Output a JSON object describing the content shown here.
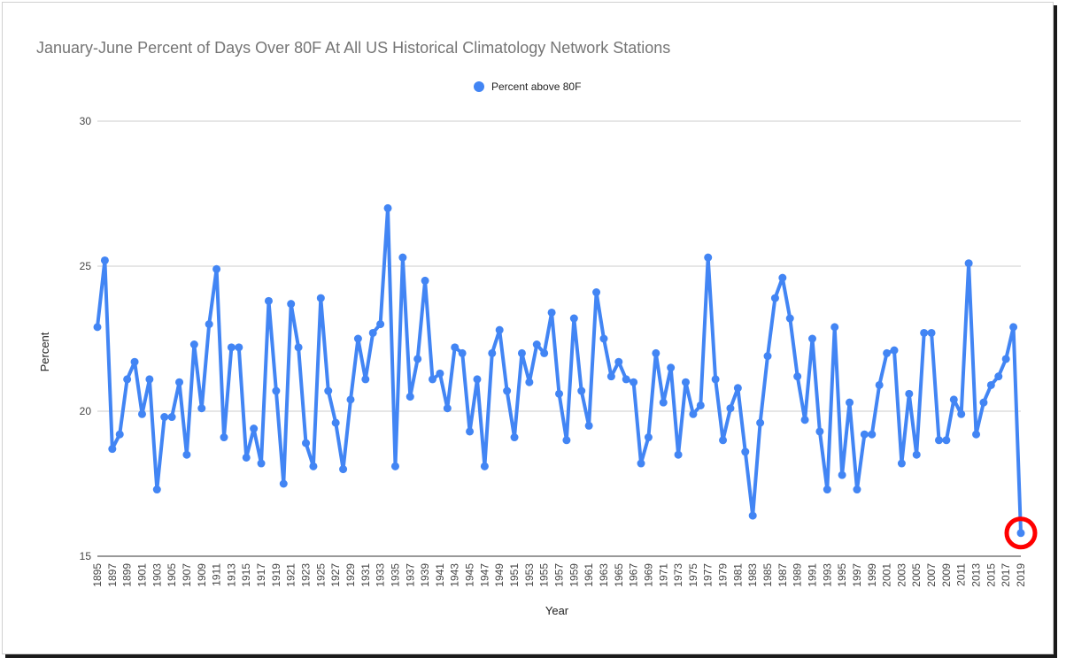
{
  "chart_data": {
    "type": "line",
    "title": "January-June Percent of Days Over 80F At All US Historical Climatology Network Stations",
    "xlabel": "Year",
    "ylabel": "Percent",
    "ylim": [
      15,
      30
    ],
    "yticks": [
      15,
      20,
      25,
      30
    ],
    "xtick_labels": [
      "1895",
      "1897",
      "1899",
      "1901",
      "1903",
      "1905",
      "1907",
      "1909",
      "1911",
      "1913",
      "1915",
      "1917",
      "1919",
      "1921",
      "1923",
      "1925",
      "1927",
      "1929",
      "1931",
      "1933",
      "1935",
      "1937",
      "1939",
      "1941",
      "1943",
      "1945",
      "1947",
      "1949",
      "1951",
      "1953",
      "1955",
      "1957",
      "1959",
      "1961",
      "1963",
      "1965",
      "1967",
      "1969",
      "1971",
      "1973",
      "1975",
      "1977",
      "1979",
      "1981",
      "1983",
      "1985",
      "1987",
      "1989",
      "1991",
      "1993",
      "1995",
      "1997",
      "1999",
      "2001",
      "2003",
      "2005",
      "2007",
      "2009",
      "2011",
      "2013",
      "2015",
      "2017",
      "2019"
    ],
    "grid": true,
    "legend_position": "top",
    "series": [
      {
        "name": "Percent above 80F",
        "color": "#4285f4",
        "x": [
          1895,
          1896,
          1897,
          1898,
          1899,
          1900,
          1901,
          1902,
          1903,
          1904,
          1905,
          1906,
          1907,
          1908,
          1909,
          1910,
          1911,
          1912,
          1913,
          1914,
          1915,
          1916,
          1917,
          1918,
          1919,
          1920,
          1921,
          1922,
          1923,
          1924,
          1925,
          1926,
          1927,
          1928,
          1929,
          1930,
          1931,
          1932,
          1933,
          1934,
          1935,
          1936,
          1937,
          1938,
          1939,
          1940,
          1941,
          1942,
          1943,
          1944,
          1945,
          1946,
          1947,
          1948,
          1949,
          1950,
          1951,
          1952,
          1953,
          1954,
          1955,
          1956,
          1957,
          1958,
          1959,
          1960,
          1961,
          1962,
          1963,
          1964,
          1965,
          1966,
          1967,
          1968,
          1969,
          1970,
          1971,
          1972,
          1973,
          1974,
          1975,
          1976,
          1977,
          1978,
          1979,
          1980,
          1981,
          1982,
          1983,
          1984,
          1985,
          1986,
          1987,
          1988,
          1989,
          1990,
          1991,
          1992,
          1993,
          1994,
          1995,
          1996,
          1997,
          1998,
          1999,
          2000,
          2001,
          2002,
          2003,
          2004,
          2005,
          2006,
          2007,
          2008,
          2009,
          2010,
          2011,
          2012,
          2013,
          2014,
          2015,
          2016,
          2017,
          2018,
          2019
        ],
        "values": [
          22.9,
          25.2,
          18.7,
          19.2,
          21.1,
          21.7,
          19.9,
          21.1,
          17.3,
          19.8,
          19.8,
          21.0,
          18.5,
          22.3,
          20.1,
          23.0,
          24.9,
          19.1,
          22.2,
          22.2,
          18.4,
          19.4,
          18.2,
          23.8,
          20.7,
          17.5,
          23.7,
          22.2,
          18.9,
          18.1,
          23.9,
          20.7,
          19.6,
          18.0,
          20.4,
          22.5,
          21.1,
          22.7,
          23.0,
          27.0,
          18.1,
          25.3,
          20.5,
          21.8,
          24.5,
          21.1,
          21.3,
          20.1,
          22.2,
          22.0,
          19.3,
          21.1,
          18.1,
          22.0,
          22.8,
          20.7,
          19.1,
          22.0,
          21.0,
          22.3,
          22.0,
          23.4,
          20.6,
          19.0,
          23.2,
          20.7,
          19.5,
          24.1,
          22.5,
          21.2,
          21.7,
          21.1,
          21.0,
          18.2,
          19.1,
          22.0,
          20.3,
          21.5,
          18.5,
          21.0,
          19.9,
          20.2,
          25.3,
          21.1,
          19.0,
          20.1,
          20.8,
          18.6,
          16.4,
          19.6,
          21.9,
          23.9,
          24.6,
          23.2,
          21.2,
          19.7,
          22.5,
          19.3,
          17.3,
          22.9,
          17.8,
          20.3,
          17.3,
          19.2,
          19.2,
          20.9,
          22.0,
          22.1,
          18.2,
          20.6,
          18.5,
          22.7,
          22.7,
          19.0,
          19.0,
          20.4,
          19.9,
          25.1,
          19.2,
          20.3,
          20.9,
          21.2,
          21.8,
          22.9,
          15.8
        ]
      }
    ],
    "highlight": {
      "year": 2019,
      "color": "#ff0000"
    }
  }
}
